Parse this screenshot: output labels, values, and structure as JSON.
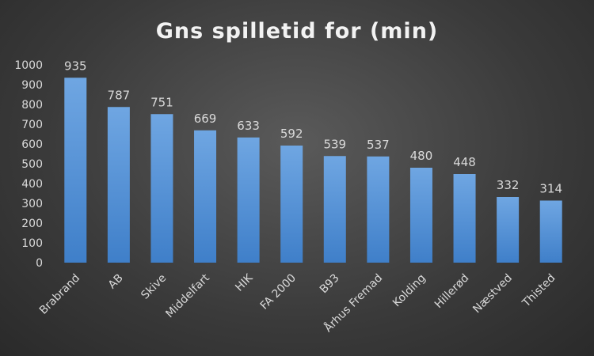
{
  "chart_data": {
    "type": "bar",
    "title": "Gns spilletid for (min)",
    "xlabel": "",
    "ylabel": "",
    "categories": [
      "Brabrand",
      "AB",
      "Skive",
      "Middelfart",
      "HIK",
      "FA 2000",
      "B93",
      "Århus Fremad",
      "Kolding",
      "Hillerød",
      "Næstved",
      "Thisted"
    ],
    "values": [
      935,
      787,
      751,
      669,
      633,
      592,
      539,
      537,
      480,
      448,
      332,
      314
    ],
    "ylim": [
      0,
      1000
    ],
    "yticks": [
      0,
      100,
      200,
      300,
      400,
      500,
      600,
      700,
      800,
      900,
      1000
    ],
    "grid": false,
    "legend": "none",
    "colors": {
      "bar_top": "#6fa6e2",
      "bar_bottom": "#3f7fc9",
      "text": "#d9d9d9"
    }
  }
}
